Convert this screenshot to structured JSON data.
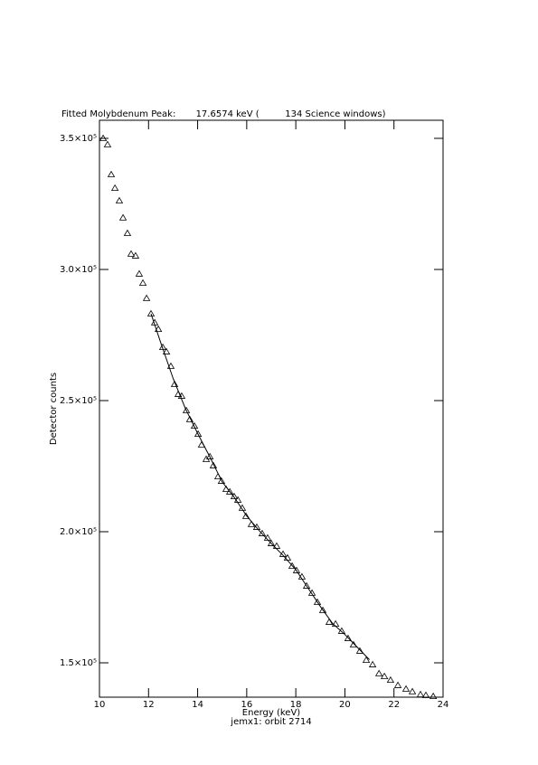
{
  "chart_data": {
    "type": "scatter",
    "title": "Fitted Molybdenum Peak:       17.6574 keV (         134 Science windows)",
    "x_label": "Energy (keV)",
    "subtitle": "jemx1: orbit 2714",
    "y_label": "Detector counts",
    "xlim": [
      10,
      24
    ],
    "xticks": [
      10,
      12,
      14,
      16,
      18,
      20,
      22,
      24
    ],
    "ylim": [
      136900,
      356900
    ],
    "yticks": [
      {
        "value": 150000,
        "label": "1.5×10⁵"
      },
      {
        "value": 200000,
        "label": "2.0×10⁵"
      },
      {
        "value": 250000,
        "label": "2.5×10⁵"
      },
      {
        "value": 300000,
        "label": "3.0×10⁵"
      },
      {
        "value": 350000,
        "label": "3.5×10⁵"
      }
    ],
    "grid": false,
    "series": [
      {
        "color": "#000000",
        "marker": "triangle",
        "x": [
          10.15,
          10.33,
          10.48,
          10.63,
          10.81,
          10.96,
          11.14,
          11.29,
          11.47,
          11.62,
          11.77,
          11.92,
          12.1,
          12.25,
          12.4,
          12.58,
          12.73,
          12.91,
          13.06,
          13.21,
          13.35,
          13.54,
          13.68,
          13.87,
          14.02,
          14.16,
          14.35,
          14.5,
          14.64,
          14.83,
          14.97,
          15.16,
          15.31,
          15.49,
          15.64,
          15.82,
          15.97,
          16.19,
          16.41,
          16.63,
          16.85,
          17.0,
          17.22,
          17.48,
          17.66,
          17.85,
          18.03,
          18.25,
          18.44,
          18.66,
          18.88,
          19.1,
          19.36,
          19.62,
          19.87,
          20.13,
          20.35,
          20.61,
          20.87,
          21.13,
          21.39,
          21.61,
          21.86,
          22.16,
          22.49,
          22.75,
          23.08,
          23.3,
          23.6
        ],
        "values": [
          350000,
          347600,
          336200,
          331000,
          326200,
          319700,
          313800,
          305900,
          305200,
          298300,
          294800,
          289000,
          283100,
          279700,
          277200,
          270300,
          268600,
          263100,
          256200,
          252400,
          251700,
          246200,
          242800,
          240300,
          237200,
          233100,
          227600,
          228600,
          225200,
          221000,
          219300,
          216200,
          215200,
          213400,
          212100,
          209000,
          205900,
          202800,
          201700,
          199300,
          197600,
          195500,
          194500,
          191400,
          190000,
          186900,
          185200,
          182800,
          179300,
          176600,
          173100,
          170000,
          165500,
          164800,
          162100,
          159300,
          156900,
          154500,
          151000,
          149300,
          145900,
          144800,
          143400,
          141400,
          140000,
          139000,
          137900,
          137600,
          137200
        ]
      },
      {
        "color": "#000000",
        "marker": "line",
        "x": [
          12.1,
          12.5,
          13,
          13.5,
          14,
          14.5,
          15,
          15.5,
          16,
          16.5,
          17,
          17.5,
          18,
          18.5,
          19,
          19.5,
          20,
          20.5,
          21
        ],
        "values": [
          283100,
          272000,
          258500,
          247000,
          237500,
          228500,
          219000,
          213000,
          206000,
          200500,
          195500,
          190800,
          185500,
          178500,
          171500,
          165000,
          160800,
          156000,
          151200
        ]
      }
    ]
  }
}
